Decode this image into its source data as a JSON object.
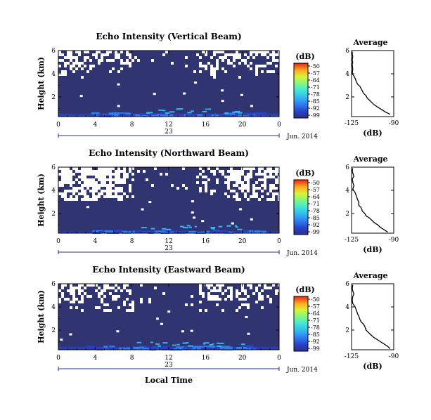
{
  "colors": {
    "background": "#ffffff",
    "noise_floor": "#303470",
    "colormap": [
      "#2a2f8c",
      "#2742c8",
      "#2f7df0",
      "#33b6f0",
      "#3fe6d8",
      "#7ef58a",
      "#d8f536",
      "#ffcc22",
      "#ff7a1a",
      "#e82414"
    ]
  },
  "chart_data": [
    {
      "type": "heatmap",
      "title": "Echo Intensity (Vertical Beam)",
      "ylabel": "Height (km)",
      "xlabel": "",
      "x_ticks": [
        "0",
        "4",
        "8",
        "12",
        "16",
        "20",
        "0"
      ],
      "y_ticks": [
        "6",
        "4",
        "2"
      ],
      "xlim": [
        0,
        24
      ],
      "ylim": [
        0.3,
        6.0
      ],
      "date_day": "23",
      "date_month": "Jun. 2014",
      "colorbar": {
        "unit": "(dB)",
        "ticks": [
          "-50",
          "-57",
          "-64",
          "-71",
          "-78",
          "-85",
          "-92",
          "-99"
        ]
      },
      "sparse_above_km": 3.6,
      "strong_band_km": [
        0.3,
        0.8
      ],
      "profile": {
        "title": "Average",
        "xlabel": "(dB)",
        "x_ticks": [
          "-125",
          "-90"
        ],
        "y_ticks": [
          "6",
          "4",
          "2"
        ],
        "xlim": [
          -125,
          -90
        ],
        "ylim": [
          0.3,
          6.0
        ],
        "x": [
          -126,
          -125,
          -124,
          -125,
          -124,
          -125,
          -124,
          -125,
          -123,
          -122,
          -121,
          -120,
          -118,
          -117,
          -116,
          -115,
          -113,
          -112,
          -110,
          -108,
          -106,
          -103,
          -100,
          -97,
          -93
        ],
        "y": [
          5.9,
          5.7,
          5.5,
          5.2,
          5.0,
          4.8,
          4.4,
          4.0,
          3.8,
          3.6,
          3.3,
          3.1,
          2.9,
          2.7,
          2.5,
          2.3,
          2.1,
          1.9,
          1.7,
          1.5,
          1.3,
          1.1,
          0.9,
          0.7,
          0.5
        ]
      }
    },
    {
      "type": "heatmap",
      "title": "Echo Intensity (Northward Beam)",
      "ylabel": "Height (km)",
      "xlabel": "",
      "x_ticks": [
        "0",
        "4",
        "8",
        "12",
        "16",
        "20",
        "0"
      ],
      "y_ticks": [
        "6",
        "4",
        "2"
      ],
      "xlim": [
        0,
        24
      ],
      "ylim": [
        0.3,
        6.0
      ],
      "date_day": "23",
      "date_month": "Jun. 2014",
      "colorbar": {
        "unit": "(dB)",
        "ticks": [
          "-50",
          "-57",
          "-64",
          "-71",
          "-78",
          "-85",
          "-92",
          "-99"
        ]
      },
      "sparse_above_km": 3.2,
      "strong_band_km": [
        0.3,
        0.7
      ],
      "profile": {
        "title": "Average",
        "xlabel": "(dB)",
        "x_ticks": [
          "-125",
          "-90"
        ],
        "y_ticks": [
          "6",
          "4",
          "2"
        ],
        "xlim": [
          -125,
          -90
        ],
        "ylim": [
          0.3,
          6.0
        ],
        "x": [
          -124,
          -125,
          -124,
          -123,
          -125,
          -124,
          -123,
          -124,
          -122,
          -121,
          -120,
          -119,
          -119,
          -117,
          -116,
          -114,
          -113,
          -110,
          -108,
          -106,
          -103,
          -101,
          -98,
          -95
        ],
        "y": [
          5.9,
          5.7,
          5.5,
          5.2,
          5.0,
          4.7,
          4.4,
          4.1,
          3.8,
          3.5,
          3.2,
          3.0,
          2.7,
          2.5,
          2.2,
          2.0,
          1.8,
          1.6,
          1.4,
          1.2,
          1.0,
          0.8,
          0.6,
          0.4
        ]
      }
    },
    {
      "type": "heatmap",
      "title": "Echo Intensity (Eastward Beam)",
      "ylabel": "Height (km)",
      "xlabel": "Local Time",
      "x_ticks": [
        "0",
        "4",
        "8",
        "12",
        "16",
        "20",
        "0"
      ],
      "y_ticks": [
        "6",
        "4",
        "2"
      ],
      "xlim": [
        0,
        24
      ],
      "ylim": [
        0.3,
        6.0
      ],
      "date_day": "23",
      "date_month": "Jun. 2014",
      "colorbar": {
        "unit": "(dB)",
        "ticks": [
          "-50",
          "-57",
          "-64",
          "-71",
          "-78",
          "-85",
          "-92",
          "-99"
        ]
      },
      "sparse_above_km": 3.8,
      "strong_band_km": [
        0.3,
        0.8
      ],
      "profile": {
        "title": "Average",
        "xlabel": "(dB)",
        "x_ticks": [
          "-125",
          "-90"
        ],
        "y_ticks": [
          "6",
          "4",
          "2"
        ],
        "xlim": [
          -125,
          -90
        ],
        "ylim": [
          0.3,
          6.0
        ],
        "x": [
          -124,
          -125,
          -124,
          -123,
          -124,
          -125,
          -124,
          -122,
          -121,
          -120,
          -119,
          -118,
          -117,
          -115,
          -114,
          -113,
          -111,
          -109,
          -107,
          -104,
          -101,
          -98,
          -95,
          -93
        ],
        "y": [
          5.9,
          5.6,
          5.4,
          5.1,
          4.9,
          4.6,
          4.3,
          4.0,
          3.7,
          3.4,
          3.2,
          2.9,
          2.7,
          2.5,
          2.3,
          2.0,
          1.8,
          1.6,
          1.4,
          1.2,
          1.0,
          0.8,
          0.6,
          0.4
        ]
      }
    }
  ]
}
